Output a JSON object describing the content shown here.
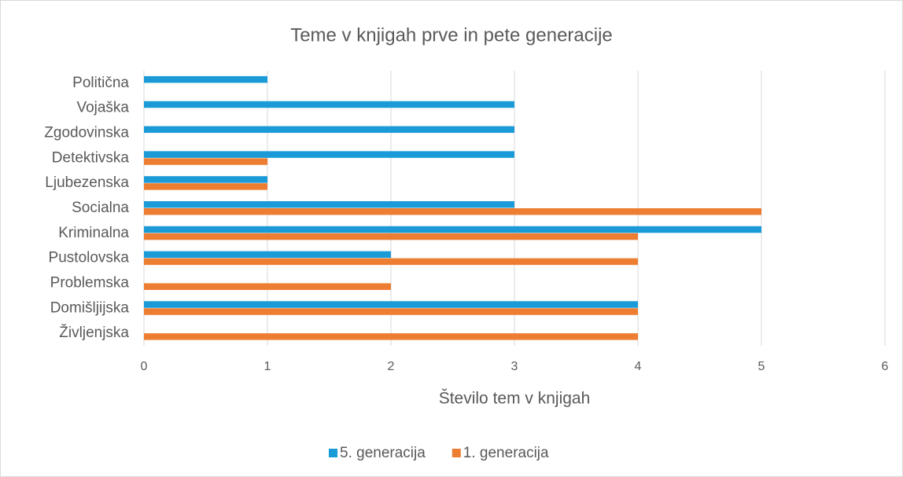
{
  "chart_data": {
    "type": "hbar",
    "title": "Teme v knjigah prve in pete generacije",
    "xlabel": "Število tem v knjigah",
    "categories": [
      "Politična",
      "Vojaška",
      "Zgodovinska",
      "Detektivska",
      "Ljubezenska",
      "Socialna",
      "Kriminalna",
      "Pustolovska",
      "Problemska",
      "Domišljijska",
      "Življenjska"
    ],
    "series": [
      {
        "name": "5. generacija",
        "color": "#1a9bd7",
        "values": [
          1,
          3,
          3,
          3,
          1,
          3,
          5,
          2,
          0,
          4,
          0
        ]
      },
      {
        "name": "1. generacija",
        "color": "#ed7d31",
        "values": [
          0,
          0,
          0,
          1,
          1,
          5,
          4,
          4,
          2,
          4,
          4
        ]
      }
    ],
    "xlim": [
      0,
      6
    ],
    "xticks": [
      0,
      1,
      2,
      3,
      4,
      5,
      6
    ],
    "grid": true,
    "legend": "bottom"
  }
}
